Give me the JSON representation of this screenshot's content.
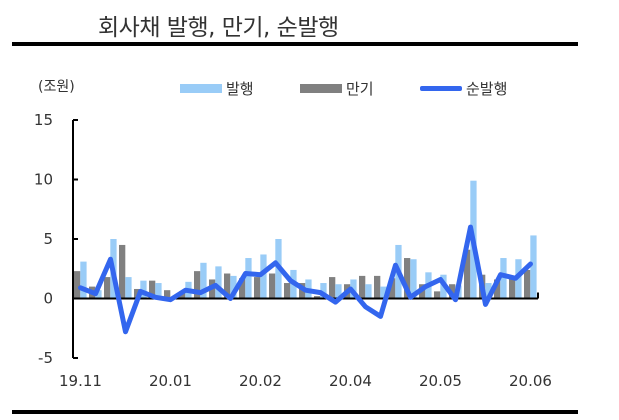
{
  "header": {
    "title": "회사채 발행, 만기, 순발행"
  },
  "unit_label": "(조원)",
  "legend": [
    {
      "label": "발행",
      "color": "#99ccf7",
      "kind": "bar"
    },
    {
      "label": "만기",
      "color": "#808080",
      "kind": "bar"
    },
    {
      "label": "순발행",
      "color": "#3366ee",
      "kind": "line"
    }
  ],
  "chart_data": {
    "type": "bar",
    "title": "회사채 발행, 만기, 순발행",
    "xlabel": "",
    "ylabel": "(조원)",
    "ylim": [
      -5,
      15
    ],
    "yticks": [
      15,
      10,
      5,
      0,
      -5
    ],
    "xtick_labels": [
      "19.11",
      "20.01",
      "20.02",
      "20.04",
      "20.05",
      "20.06"
    ],
    "xtick_positions": [
      0,
      6,
      12,
      18,
      24,
      30
    ],
    "legend_position": "top",
    "grid": false,
    "series": [
      {
        "name": "발행",
        "type": "bar",
        "color": "#99ccf7",
        "values": [
          3.1,
          0.7,
          5.0,
          1.8,
          1.5,
          1.3,
          0.0,
          1.4,
          3.0,
          2.7,
          1.9,
          3.4,
          3.7,
          5.0,
          2.4,
          1.6,
          1.3,
          1.2,
          1.6,
          1.2,
          1.0,
          4.5,
          3.3,
          2.2,
          2.0,
          1.1,
          9.9,
          1.3,
          3.4,
          3.3,
          5.3
        ]
      },
      {
        "name": "만기",
        "type": "bar",
        "color": "#808080",
        "values": [
          2.3,
          1.0,
          1.8,
          4.5,
          0.8,
          1.5,
          0.7,
          0.6,
          2.3,
          1.6,
          2.1,
          1.7,
          1.8,
          2.1,
          1.3,
          1.3,
          0.2,
          1.8,
          1.2,
          1.9,
          1.9,
          1.7,
          3.4,
          1.2,
          0.6,
          1.2,
          4.1,
          2.0,
          1.6,
          1.8,
          2.4
        ]
      },
      {
        "name": "순발행",
        "type": "line",
        "color": "#3366ee",
        "values": [
          0.9,
          0.4,
          3.3,
          -2.8,
          0.6,
          0.1,
          -0.1,
          0.7,
          0.5,
          1.1,
          0.0,
          2.1,
          2.0,
          3.0,
          1.5,
          0.7,
          0.5,
          -0.3,
          0.8,
          -0.7,
          -1.5,
          2.8,
          0.1,
          1.0,
          1.6,
          -0.1,
          6.0,
          -0.5,
          2.0,
          1.7,
          2.9
        ]
      }
    ]
  }
}
